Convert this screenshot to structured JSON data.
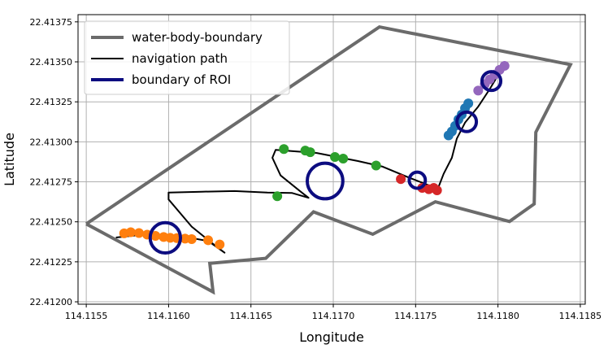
{
  "chart_data": {
    "type": "scatter",
    "xlabel": "Longitude",
    "ylabel": "Latitude",
    "xlim": [
      114.11545,
      114.11853
    ],
    "ylim": [
      22.411985,
      22.413795
    ],
    "xticks": [
      114.1155,
      114.116,
      114.1165,
      114.117,
      114.1175,
      114.118,
      114.1185
    ],
    "xtick_labels": [
      "114.1155",
      "114.1160",
      "114.1165",
      "114.1170",
      "114.1175",
      "114.1180",
      "114.1185"
    ],
    "yticks": [
      22.412,
      22.41225,
      22.4125,
      22.41275,
      22.413,
      22.41325,
      22.4135,
      22.41375
    ],
    "ytick_labels": [
      "22.41200",
      "22.41225",
      "22.41250",
      "22.41275",
      "22.41300",
      "22.41325",
      "22.41350",
      "22.41375"
    ],
    "grid": true,
    "legend": {
      "placement": "top-left",
      "entries": [
        {
          "label": "water-body-boundary",
          "color": "#6b6b6b"
        },
        {
          "label": "navigation path",
          "color": "#000000"
        },
        {
          "label": "boundary of ROI",
          "color": "#0c0c80"
        }
      ]
    },
    "series": [
      {
        "name": "water-body-boundary",
        "kind": "polygon",
        "color": "#6b6b6b",
        "points": [
          [
            114.1155,
            22.412487
          ],
          [
            114.11728,
            22.413718
          ],
          [
            114.11844,
            22.413483
          ],
          [
            114.11823,
            22.41306
          ],
          [
            114.11822,
            22.412612
          ],
          [
            114.11807,
            22.412502
          ],
          [
            114.11762,
            22.412625
          ],
          [
            114.11724,
            22.412422
          ],
          [
            114.11688,
            22.412562
          ],
          [
            114.11659,
            22.412272
          ],
          [
            114.11625,
            22.41224
          ],
          [
            114.11627,
            22.412062
          ],
          [
            114.1155,
            22.412487
          ]
        ]
      },
      {
        "name": "navigation path",
        "kind": "line",
        "color": "#000000",
        "points": [
          [
            114.11568,
            22.412402
          ],
          [
            114.11585,
            22.41242
          ],
          [
            114.11598,
            22.412418
          ],
          [
            114.11612,
            22.412402
          ],
          [
            114.11624,
            22.41238
          ],
          [
            114.11634,
            22.412307
          ],
          [
            114.11626,
            22.41237
          ],
          [
            114.11614,
            22.41247
          ],
          [
            114.116,
            22.41264
          ],
          [
            114.116,
            22.412683
          ],
          [
            114.1162,
            22.412688
          ],
          [
            114.1164,
            22.412692
          ],
          [
            114.1166,
            22.412683
          ],
          [
            114.11675,
            22.41268
          ],
          [
            114.11685,
            22.41265
          ],
          [
            114.1168,
            22.41269
          ],
          [
            114.11668,
            22.41279
          ],
          [
            114.11663,
            22.4129
          ],
          [
            114.11665,
            22.41295
          ],
          [
            114.1169,
            22.41293
          ],
          [
            114.11715,
            22.41288
          ],
          [
            114.1173,
            22.412845
          ],
          [
            114.11745,
            22.41278
          ],
          [
            114.1176,
            22.41272
          ],
          [
            114.11764,
            22.41272
          ],
          [
            114.11767,
            22.4128
          ],
          [
            114.11772,
            22.4129
          ],
          [
            114.11775,
            22.41302
          ],
          [
            114.1178,
            22.41312
          ],
          [
            114.11788,
            22.41322
          ],
          [
            114.11795,
            22.41333
          ],
          [
            114.11802,
            22.41345
          ],
          [
            114.11805,
            22.41348
          ]
        ]
      },
      {
        "name": "",
        "kind": "points",
        "color": "#ff7f0e",
        "points": [
          [
            114.11573,
            22.412428
          ],
          [
            114.11577,
            22.412435
          ],
          [
            114.11582,
            22.41243
          ],
          [
            114.11587,
            22.41242
          ],
          [
            114.11592,
            22.412412
          ],
          [
            114.11597,
            22.412405
          ],
          [
            114.11601,
            22.4124
          ],
          [
            114.11605,
            22.412398
          ],
          [
            114.1161,
            22.412395
          ],
          [
            114.11614,
            22.412392
          ],
          [
            114.11624,
            22.412385
          ],
          [
            114.11631,
            22.412358
          ]
        ]
      },
      {
        "name": "",
        "kind": "points",
        "color": "#2ca02c",
        "points": [
          [
            114.1167,
            22.412955
          ],
          [
            114.11683,
            22.412945
          ],
          [
            114.11686,
            22.412935
          ],
          [
            114.11701,
            22.412905
          ],
          [
            114.11706,
            22.412895
          ],
          [
            114.11726,
            22.412852
          ],
          [
            114.11666,
            22.41266
          ]
        ]
      },
      {
        "name": "",
        "kind": "points",
        "color": "#d62728",
        "points": [
          [
            114.11741,
            22.412767
          ],
          [
            114.11754,
            22.412712
          ],
          [
            114.11758,
            22.412704
          ],
          [
            114.11761,
            22.412712
          ],
          [
            114.11763,
            22.412697
          ]
        ]
      },
      {
        "name": "",
        "kind": "points",
        "color": "#1f77b4",
        "points": [
          [
            114.1177,
            22.41304
          ],
          [
            114.11772,
            22.413065
          ],
          [
            114.11774,
            22.4131
          ],
          [
            114.11776,
            22.41314
          ],
          [
            114.11778,
            22.41317
          ],
          [
            114.1178,
            22.41321
          ],
          [
            114.11782,
            22.41324
          ]
        ]
      },
      {
        "name": "",
        "kind": "points",
        "color": "#9467bd",
        "points": [
          [
            114.11788,
            22.41332
          ],
          [
            114.11792,
            22.41336
          ],
          [
            114.11795,
            22.41339
          ],
          [
            114.11798,
            22.41342
          ],
          [
            114.11801,
            22.41345
          ],
          [
            114.11804,
            22.413475
          ]
        ]
      },
      {
        "name": "boundary of ROI",
        "kind": "circles",
        "color": "#0c0c80",
        "circles": [
          {
            "cx": 114.11598,
            "cy": 22.4124,
            "r": 9.2e-05
          },
          {
            "cx": 114.11695,
            "cy": 22.412755,
            "r": 0.000108
          },
          {
            "cx": 114.11751,
            "cy": 22.41276,
            "r": 4.9e-05
          },
          {
            "cx": 114.11781,
            "cy": 22.413125,
            "r": 5.9e-05
          },
          {
            "cx": 114.11796,
            "cy": 22.41338,
            "r": 5.7e-05
          }
        ]
      }
    ]
  }
}
